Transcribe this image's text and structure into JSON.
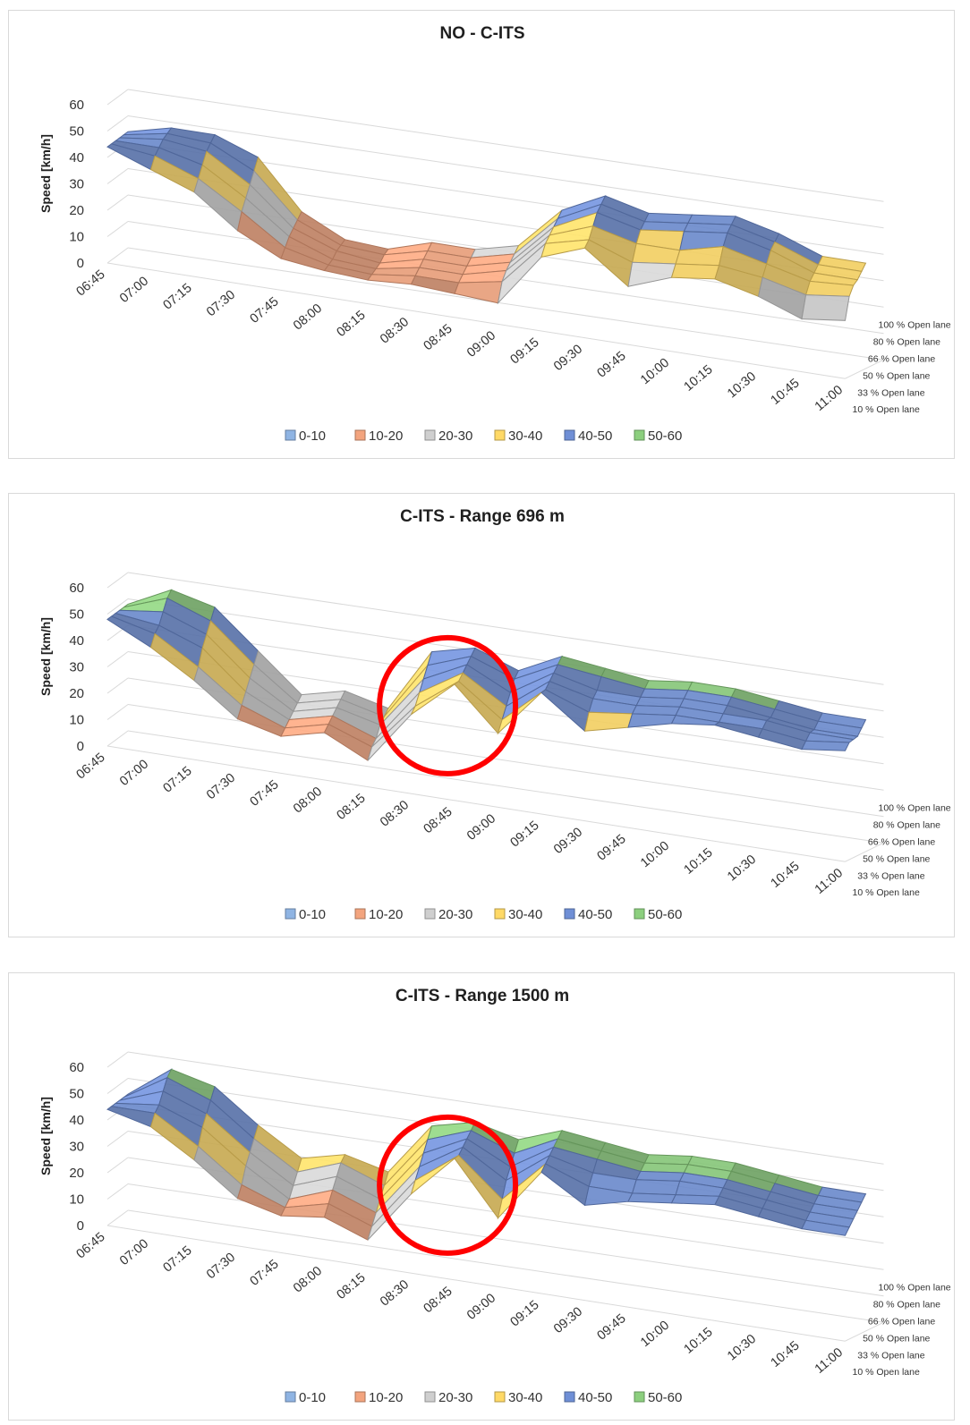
{
  "legend": {
    "entries": [
      {
        "label": "0-10",
        "color": "#8fb4e3"
      },
      {
        "label": "10-20",
        "color": "#f3a47e"
      },
      {
        "label": "20-30",
        "color": "#cfcfcf"
      },
      {
        "label": "30-40",
        "color": "#ffd966"
      },
      {
        "label": "40-50",
        "color": "#6f8fd6"
      },
      {
        "label": "50-60",
        "color": "#8ccf7e"
      }
    ]
  },
  "highlight_color": "#ff0000",
  "chart_data": [
    {
      "type": "surface",
      "title": "NO - C-ITS",
      "ylabel": "Speed [km/h]",
      "zlim": [
        0,
        60
      ],
      "z_ticks": [
        "0",
        "10",
        "20",
        "30",
        "40",
        "50",
        "60"
      ],
      "x_categories": [
        "06:45",
        "07:00",
        "07:15",
        "07:30",
        "07:45",
        "08:00",
        "08:15",
        "08:30",
        "08:45",
        "09:00",
        "09:15",
        "09:30",
        "09:45",
        "10:00",
        "10:15",
        "10:30",
        "10:45",
        "11:00"
      ],
      "y_categories": [
        "10 % Open lane",
        "33 % Open lane",
        "50 % Open lane",
        "66 % Open lane",
        "80 % Open lane",
        "100 % Open lane"
      ],
      "values": [
        [
          44,
          38,
          32,
          20,
          12,
          10,
          9,
          10,
          9,
          8,
          28,
          34,
          22,
          28,
          30,
          26,
          20,
          22
        ],
        [
          44,
          42,
          36,
          26,
          15,
          11,
          10,
          12,
          12,
          15,
          32,
          36,
          30,
          32,
          34,
          32,
          28,
          30
        ],
        [
          44,
          44,
          40,
          30,
          18,
          12,
          11,
          14,
          14,
          18,
          34,
          40,
          36,
          36,
          40,
          36,
          32,
          33
        ],
        [
          44,
          46,
          44,
          34,
          20,
          14,
          12,
          16,
          16,
          20,
          36,
          44,
          40,
          42,
          44,
          40,
          34,
          34
        ],
        [
          44,
          47,
          46,
          38,
          22,
          15,
          14,
          18,
          18,
          22,
          38,
          46,
          42,
          44,
          46,
          42,
          36,
          36
        ],
        [
          44,
          48,
          48,
          42,
          24,
          16,
          15,
          20,
          20,
          24,
          40,
          48,
          44,
          46,
          48,
          44,
          38,
          38
        ]
      ],
      "highlight": false
    },
    {
      "type": "surface",
      "title": "C-ITS - Range 696 m",
      "ylabel": "Speed [km/h]",
      "zlim": [
        0,
        60
      ],
      "z_ticks": [
        "0",
        "10",
        "20",
        "30",
        "40",
        "50",
        "60"
      ],
      "x_categories": [
        "06:45",
        "07:00",
        "07:15",
        "07:30",
        "07:45",
        "08:00",
        "08:15",
        "08:30",
        "08:45",
        "09:00",
        "09:15",
        "09:30",
        "09:45",
        "10:00",
        "10:15",
        "10:30",
        "10:45",
        "11:00"
      ],
      "y_categories": [
        "10 % Open lane",
        "33 % Open lane",
        "50 % Open lane",
        "66 % Open lane",
        "80 % Open lane",
        "100 % Open lane"
      ],
      "values": [
        [
          48,
          40,
          30,
          18,
          14,
          18,
          10,
          30,
          44,
          28,
          46,
          34,
          38,
          42,
          44,
          42,
          40,
          42
        ],
        [
          48,
          44,
          34,
          22,
          16,
          20,
          14,
          32,
          44,
          32,
          46,
          40,
          42,
          44,
          44,
          44,
          42,
          44
        ],
        [
          48,
          46,
          40,
          26,
          18,
          22,
          16,
          36,
          46,
          36,
          48,
          44,
          44,
          46,
          46,
          46,
          44,
          44
        ],
        [
          48,
          50,
          44,
          30,
          20,
          24,
          20,
          40,
          48,
          40,
          50,
          46,
          46,
          48,
          48,
          46,
          44,
          44
        ],
        [
          48,
          54,
          48,
          34,
          22,
          26,
          22,
          44,
          50,
          44,
          52,
          50,
          48,
          50,
          50,
          48,
          46,
          46
        ],
        [
          48,
          56,
          52,
          38,
          24,
          28,
          24,
          48,
          52,
          46,
          54,
          52,
          50,
          52,
          52,
          50,
          48,
          48
        ]
      ],
      "highlight": true
    },
    {
      "type": "surface",
      "title": "C-ITS - Range 1500 m",
      "ylabel": "Speed [km/h]",
      "zlim": [
        0,
        60
      ],
      "z_ticks": [
        "0",
        "10",
        "20",
        "30",
        "40",
        "50",
        "60"
      ],
      "x_categories": [
        "06:45",
        "07:00",
        "07:15",
        "07:30",
        "07:45",
        "08:00",
        "08:15",
        "08:30",
        "08:45",
        "09:00",
        "09:15",
        "09:30",
        "09:45",
        "10:00",
        "10:15",
        "10:30",
        "10:45",
        "11:00"
      ],
      "y_categories": [
        "10 % Open lane",
        "33 % Open lane",
        "50 % Open lane",
        "66 % Open lane",
        "80 % Open lane",
        "100 % Open lane"
      ],
      "values": [
        [
          44,
          40,
          30,
          18,
          14,
          16,
          10,
          30,
          46,
          26,
          46,
          36,
          40,
          42,
          44,
          42,
          40,
          40
        ],
        [
          44,
          44,
          34,
          22,
          16,
          20,
          14,
          34,
          46,
          32,
          48,
          42,
          42,
          44,
          46,
          44,
          42,
          42
        ],
        [
          44,
          46,
          40,
          28,
          18,
          24,
          18,
          38,
          48,
          38,
          50,
          46,
          46,
          48,
          48,
          46,
          44,
          44
        ],
        [
          44,
          50,
          44,
          32,
          22,
          28,
          22,
          42,
          50,
          42,
          52,
          50,
          48,
          50,
          50,
          48,
          46,
          46
        ],
        [
          44,
          54,
          48,
          36,
          26,
          32,
          26,
          46,
          52,
          46,
          54,
          52,
          50,
          52,
          52,
          50,
          48,
          48
        ],
        [
          44,
          56,
          52,
          40,
          30,
          34,
          30,
          50,
          54,
          50,
          56,
          54,
          52,
          54,
          54,
          52,
          50,
          50
        ]
      ],
      "highlight": true
    }
  ]
}
